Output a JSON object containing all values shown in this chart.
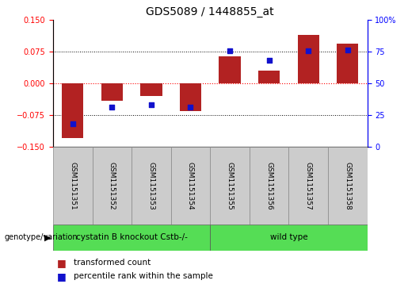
{
  "title": "GDS5089 / 1448855_at",
  "samples": [
    "GSM1151351",
    "GSM1151352",
    "GSM1151353",
    "GSM1151354",
    "GSM1151355",
    "GSM1151356",
    "GSM1151357",
    "GSM1151358"
  ],
  "red_values": [
    -0.13,
    -0.04,
    -0.03,
    -0.065,
    0.065,
    0.03,
    0.115,
    0.095
  ],
  "blue_values": [
    -0.095,
    -0.055,
    -0.05,
    -0.055,
    0.078,
    0.055,
    0.078,
    0.08
  ],
  "ylim": [
    -0.15,
    0.15
  ],
  "yticks_left": [
    -0.15,
    -0.075,
    0,
    0.075,
    0.15
  ],
  "yticks_right": [
    0,
    25,
    50,
    75,
    100
  ],
  "hlines_dotted": [
    -0.075,
    0.075
  ],
  "hline_zero": 0,
  "bar_color": "#b22222",
  "dot_color": "#1111cc",
  "group1_label": "cystatin B knockout Cstb-/-",
  "group2_label": "wild type",
  "group_color": "#55dd55",
  "group_label_text": "genotype/variation",
  "legend_red": "transformed count",
  "legend_blue": "percentile rank within the sample",
  "bar_width": 0.55,
  "label_fontsize": 6.5,
  "title_fontsize": 10,
  "tick_fontsize": 7,
  "group_fontsize": 7.5
}
